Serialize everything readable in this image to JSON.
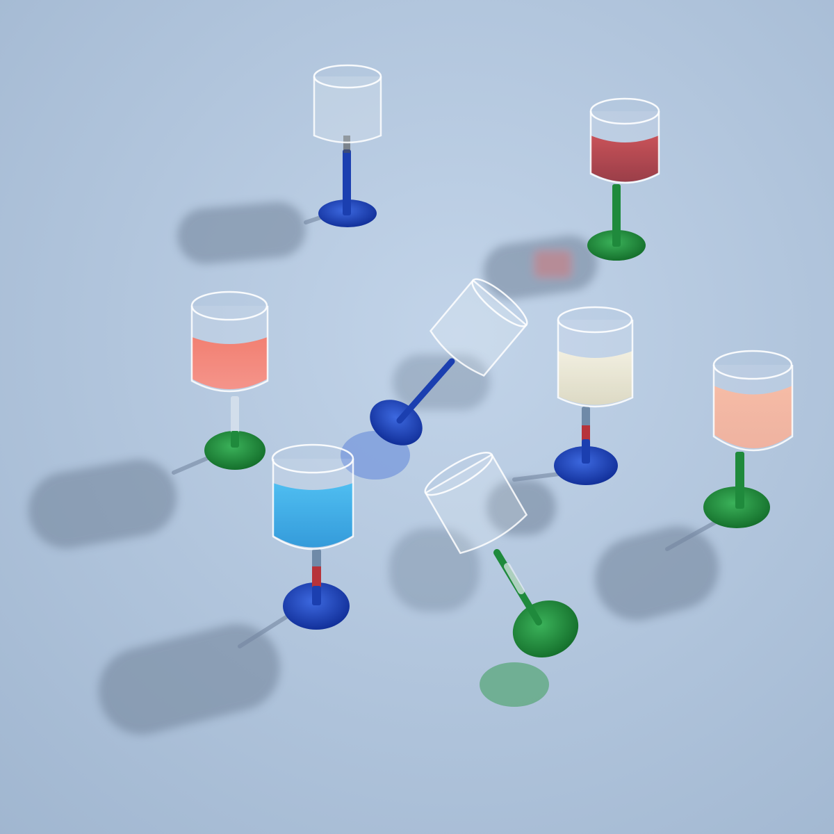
{
  "scene": {
    "subject": "wine-glasses-on-table",
    "palette": {
      "background": "#a9bfd9",
      "background_light": "#bcd0e6",
      "shadow": "#6f8198",
      "glass_rim": "#f4f7fb",
      "cobalt": "#1b3fb0",
      "emerald": "#1f8a3c",
      "red_wine": "#b7333a",
      "coral": "#f06c63",
      "white_wine": "#e9e6d3",
      "peach": "#f4b49c",
      "aqua": "#2aa7e6"
    },
    "glasses": [
      {
        "id": "clear-blue-stem",
        "liquid": "none",
        "stem": "cobalt",
        "foot": "cobalt",
        "pose": "upright"
      },
      {
        "id": "red-green-stem",
        "liquid": "red_wine",
        "stem": "emerald",
        "foot": "emerald",
        "pose": "upright"
      },
      {
        "id": "coral-green-foot",
        "liquid": "coral",
        "stem": "clear",
        "foot": "emerald",
        "pose": "upright"
      },
      {
        "id": "tipped-blue-stem",
        "liquid": "none",
        "stem": "cobalt",
        "foot": "cobalt",
        "pose": "lying"
      },
      {
        "id": "white-blue-foot",
        "liquid": "white_wine",
        "stem": "red-blue",
        "foot": "cobalt",
        "pose": "upright"
      },
      {
        "id": "peach-green-stem",
        "liquid": "peach",
        "stem": "emerald",
        "foot": "emerald",
        "pose": "upright"
      },
      {
        "id": "aqua-blue-foot",
        "liquid": "aqua",
        "stem": "red-blue",
        "foot": "cobalt",
        "pose": "upright"
      },
      {
        "id": "tipped-green-stem",
        "liquid": "none",
        "stem": "emerald",
        "foot": "emerald",
        "pose": "lying"
      }
    ]
  }
}
